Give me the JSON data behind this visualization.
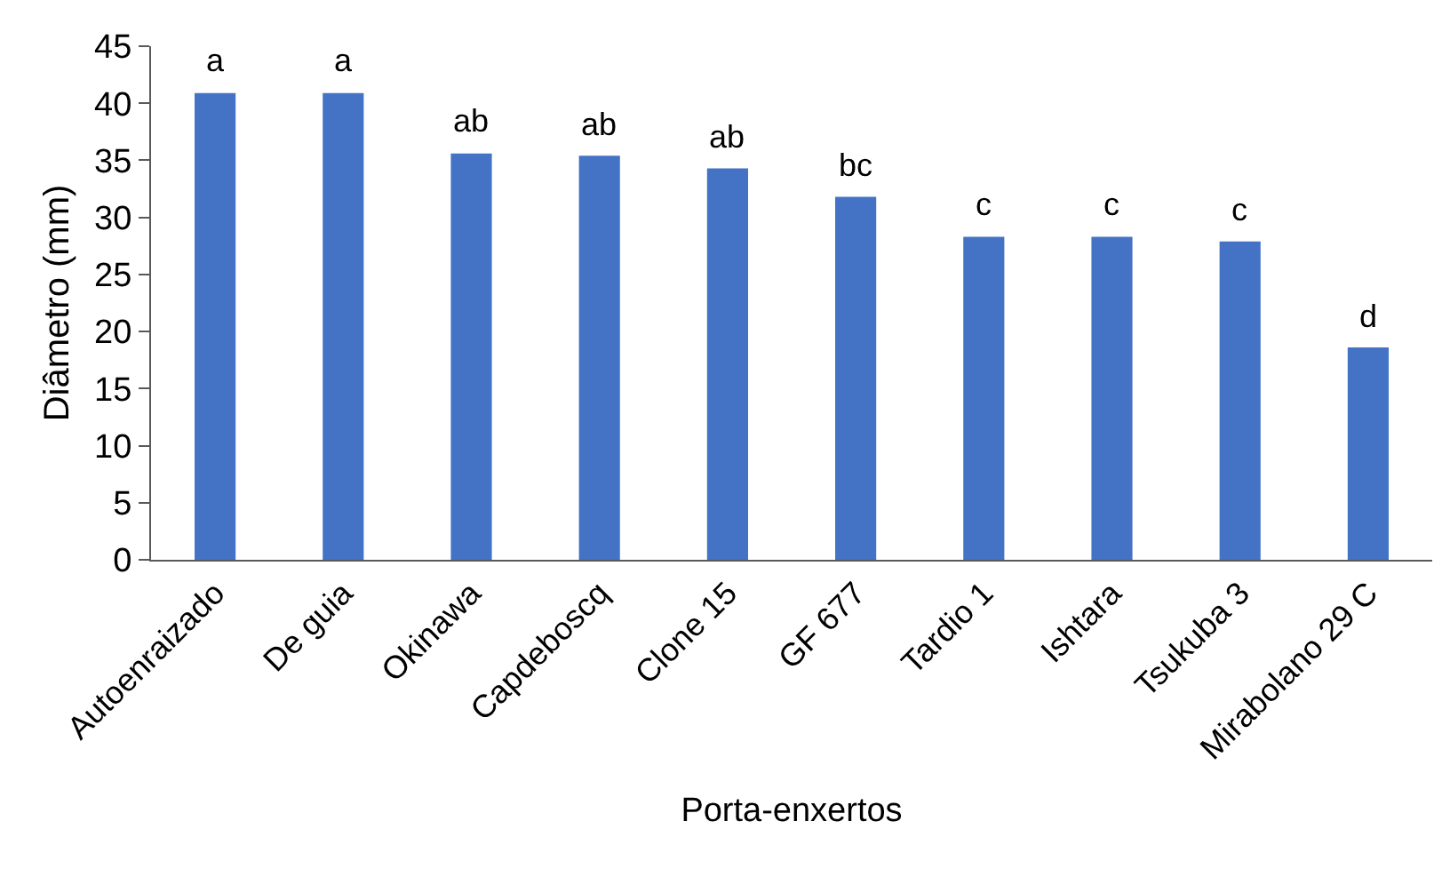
{
  "chart_data": {
    "type": "bar",
    "xlabel": "Porta-enxertos",
    "ylabel": "Diâmetro (mm)",
    "categories": [
      "Autoenraizado",
      "De guia",
      "Okinawa",
      "Capdeboscq",
      "Clone 15",
      "GF 677",
      "Tardio 1",
      "Ishtara",
      "Tsukuba 3",
      "Mirabolano 29 C"
    ],
    "values": [
      40.9,
      40.9,
      35.6,
      35.4,
      34.3,
      31.8,
      28.3,
      28.3,
      27.9,
      18.6
    ],
    "color": "#4472c4",
    "ylim": [
      0,
      45
    ],
    "yticks": [
      0,
      5,
      10,
      15,
      20,
      25,
      30,
      35,
      40,
      45
    ],
    "grid": false,
    "legend": false,
    "annotations": [
      {
        "text": "a",
        "x": "Autoenraizado",
        "y": 40.9
      },
      {
        "text": "a",
        "x": "De guia",
        "y": 40.9
      },
      {
        "text": "ab",
        "x": "Okinawa",
        "y": 35.6
      },
      {
        "text": "ab",
        "x": "Capdeboscq",
        "y": 35.4
      },
      {
        "text": "ab",
        "x": "Clone 15",
        "y": 34.3
      },
      {
        "text": "bc",
        "x": "GF 677",
        "y": 31.8
      },
      {
        "text": "c",
        "x": "Tardio 1",
        "y": 28.3
      },
      {
        "text": "c",
        "x": "Ishtara",
        "y": 28.3
      },
      {
        "text": "c",
        "x": "Tsukuba 3",
        "y": 27.9
      },
      {
        "text": "d",
        "x": "Mirabolano 29 C",
        "y": 18.6
      }
    ]
  }
}
